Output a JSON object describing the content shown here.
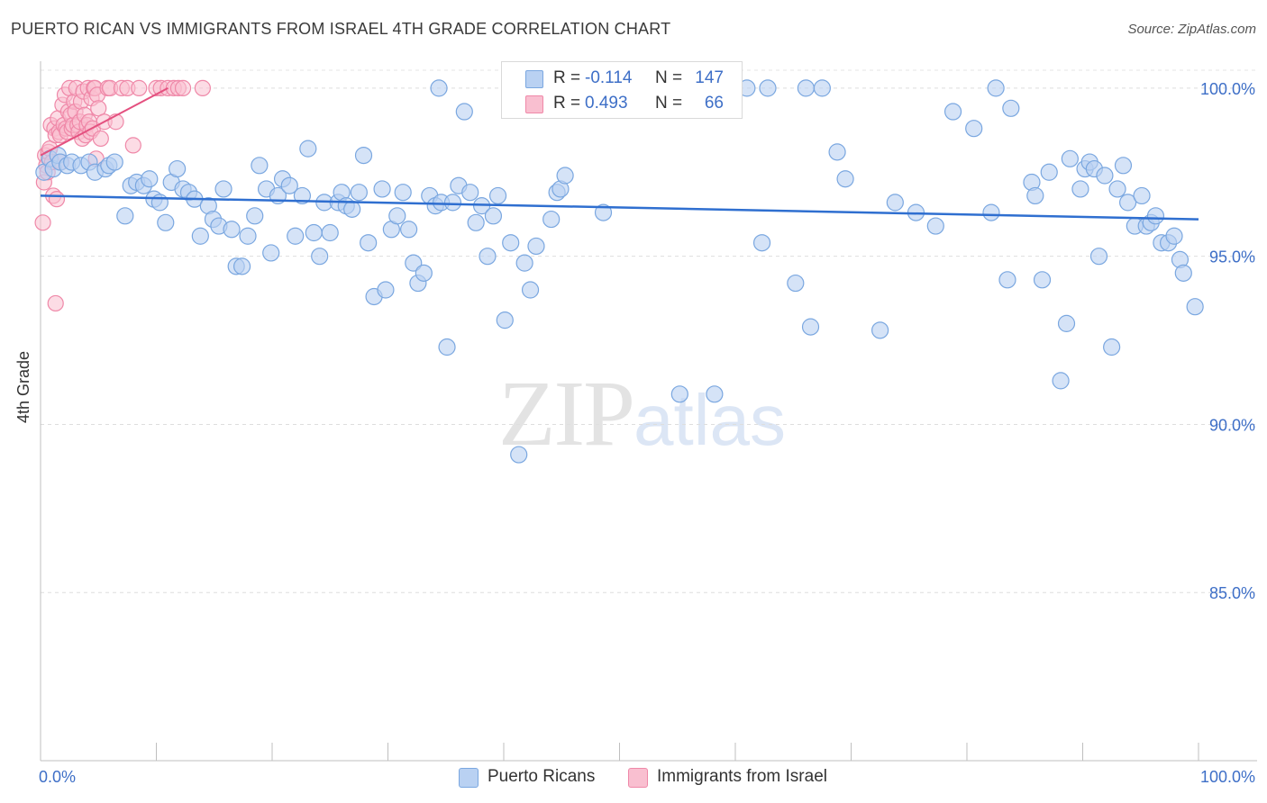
{
  "title": "PUERTO RICAN VS IMMIGRANTS FROM ISRAEL 4TH GRADE CORRELATION CHART",
  "source": "Source: ZipAtlas.com",
  "watermark": {
    "zip": "ZIP",
    "atlas": "atlas"
  },
  "legend": {
    "rows": [
      {
        "r_label": "R =",
        "r_value": "-0.114",
        "n_label": "N =",
        "n_value": "147",
        "color": "#b9d1f2"
      },
      {
        "r_label": "R =",
        "r_value": "0.493",
        "n_label": "N =",
        "n_value": "66",
        "color": "#f9bfd0"
      }
    ]
  },
  "bottom_legend": [
    {
      "label": "Puerto Ricans",
      "color": "#b9d1f2"
    },
    {
      "label": "Immigrants from Israel",
      "color": "#f9bfd0"
    }
  ],
  "chart_data": {
    "type": "scatter",
    "title": "PUERTO RICAN VS IMMIGRANTS FROM ISRAEL 4TH GRADE CORRELATION CHART",
    "xlabel": "",
    "ylabel": "4th Grade",
    "xlim": [
      0,
      100
    ],
    "ylim": [
      80,
      100.8
    ],
    "x_tick_labels": [
      "0.0%",
      "100.0%"
    ],
    "y_ticks": [
      85,
      90,
      95,
      100
    ],
    "y_tick_labels": [
      "85.0%",
      "90.0%",
      "95.0%",
      "100.0%"
    ],
    "grid": true,
    "legend_placement": "top-center",
    "colors": {
      "blue_fill": "#b9d1f2",
      "blue_stroke": "#7aa7e0",
      "blue_line": "#2f6fd0",
      "pink_fill": "#f9bfd0",
      "pink_stroke": "#ef88a8",
      "pink_line": "#e4507f"
    },
    "series": [
      {
        "name": "Puerto Ricans",
        "color": "#b9d1f2",
        "trend": {
          "x": [
            0,
            100
          ],
          "y": [
            96.8,
            96.1
          ]
        },
        "points": [
          [
            0.3,
            97.5
          ],
          [
            0.8,
            97.9
          ],
          [
            1.1,
            97.6
          ],
          [
            1.5,
            98.0
          ],
          [
            1.7,
            97.8
          ],
          [
            2.3,
            97.7
          ],
          [
            2.7,
            97.8
          ],
          [
            3.5,
            97.7
          ],
          [
            4.2,
            97.8
          ],
          [
            4.7,
            97.5
          ],
          [
            5.6,
            97.6
          ],
          [
            5.9,
            97.7
          ],
          [
            6.4,
            97.8
          ],
          [
            7.3,
            96.2
          ],
          [
            7.8,
            97.1
          ],
          [
            8.3,
            97.2
          ],
          [
            8.9,
            97.1
          ],
          [
            9.4,
            97.3
          ],
          [
            9.8,
            96.7
          ],
          [
            10.3,
            96.6
          ],
          [
            10.8,
            96.0
          ],
          [
            11.3,
            97.2
          ],
          [
            11.8,
            97.6
          ],
          [
            12.3,
            97.0
          ],
          [
            12.8,
            96.9
          ],
          [
            13.3,
            96.7
          ],
          [
            13.8,
            95.6
          ],
          [
            14.5,
            96.5
          ],
          [
            14.9,
            96.1
          ],
          [
            15.4,
            95.9
          ],
          [
            15.8,
            97.0
          ],
          [
            16.5,
            95.8
          ],
          [
            16.9,
            94.7
          ],
          [
            17.4,
            94.7
          ],
          [
            17.9,
            95.6
          ],
          [
            18.5,
            96.2
          ],
          [
            18.9,
            97.7
          ],
          [
            19.5,
            97.0
          ],
          [
            19.9,
            95.1
          ],
          [
            20.5,
            96.8
          ],
          [
            20.9,
            97.3
          ],
          [
            21.5,
            97.1
          ],
          [
            22.0,
            95.6
          ],
          [
            22.6,
            96.8
          ],
          [
            23.1,
            98.2
          ],
          [
            23.6,
            95.7
          ],
          [
            24.1,
            95.0
          ],
          [
            24.5,
            96.6
          ],
          [
            25.0,
            95.7
          ],
          [
            25.7,
            96.6
          ],
          [
            26.0,
            96.9
          ],
          [
            26.4,
            96.5
          ],
          [
            26.9,
            96.4
          ],
          [
            27.5,
            96.9
          ],
          [
            27.9,
            98.0
          ],
          [
            28.3,
            95.4
          ],
          [
            28.8,
            93.8
          ],
          [
            29.5,
            97.0
          ],
          [
            29.8,
            94.0
          ],
          [
            30.3,
            95.8
          ],
          [
            30.8,
            96.2
          ],
          [
            31.3,
            96.9
          ],
          [
            31.8,
            95.8
          ],
          [
            32.2,
            94.8
          ],
          [
            32.6,
            94.2
          ],
          [
            33.1,
            94.5
          ],
          [
            33.6,
            96.8
          ],
          [
            34.1,
            96.5
          ],
          [
            34.4,
            100.0
          ],
          [
            34.6,
            96.6
          ],
          [
            35.1,
            92.3
          ],
          [
            35.6,
            96.6
          ],
          [
            36.1,
            97.1
          ],
          [
            36.6,
            99.3
          ],
          [
            37.1,
            96.9
          ],
          [
            37.6,
            96.0
          ],
          [
            38.1,
            96.5
          ],
          [
            38.6,
            95.0
          ],
          [
            39.1,
            96.2
          ],
          [
            39.5,
            96.8
          ],
          [
            40.1,
            93.1
          ],
          [
            40.6,
            95.4
          ],
          [
            41.0,
            100.0
          ],
          [
            41.3,
            89.1
          ],
          [
            41.8,
            94.8
          ],
          [
            42.3,
            94.0
          ],
          [
            42.8,
            95.3
          ],
          [
            43.3,
            100.0
          ],
          [
            44.1,
            96.1
          ],
          [
            44.6,
            96.9
          ],
          [
            44.9,
            97.0
          ],
          [
            45.3,
            97.4
          ],
          [
            46.1,
            100.0
          ],
          [
            47.5,
            100.0
          ],
          [
            48.6,
            96.3
          ],
          [
            49.5,
            100.0
          ],
          [
            52.3,
            100.0
          ],
          [
            55.2,
            90.9
          ],
          [
            58.2,
            90.9
          ],
          [
            59.1,
            100.0
          ],
          [
            61.0,
            100.0
          ],
          [
            62.3,
            95.4
          ],
          [
            62.8,
            100.0
          ],
          [
            65.2,
            94.2
          ],
          [
            66.1,
            100.0
          ],
          [
            66.5,
            92.9
          ],
          [
            67.5,
            100.0
          ],
          [
            68.8,
            98.1
          ],
          [
            69.5,
            97.3
          ],
          [
            72.5,
            92.8
          ],
          [
            73.8,
            96.6
          ],
          [
            75.6,
            96.3
          ],
          [
            77.3,
            95.9
          ],
          [
            78.8,
            99.3
          ],
          [
            80.6,
            98.8
          ],
          [
            82.1,
            96.3
          ],
          [
            82.5,
            100.0
          ],
          [
            83.5,
            94.3
          ],
          [
            83.8,
            99.4
          ],
          [
            85.6,
            97.2
          ],
          [
            85.9,
            96.8
          ],
          [
            86.5,
            94.3
          ],
          [
            87.1,
            97.5
          ],
          [
            88.1,
            91.3
          ],
          [
            88.6,
            93.0
          ],
          [
            88.9,
            97.9
          ],
          [
            89.8,
            97.0
          ],
          [
            90.2,
            97.6
          ],
          [
            90.6,
            97.8
          ],
          [
            91.0,
            97.6
          ],
          [
            91.4,
            95.0
          ],
          [
            91.9,
            97.4
          ],
          [
            92.5,
            92.3
          ],
          [
            93.0,
            97.0
          ],
          [
            93.5,
            97.7
          ],
          [
            93.9,
            96.6
          ],
          [
            94.5,
            95.9
          ],
          [
            95.1,
            96.8
          ],
          [
            95.5,
            95.9
          ],
          [
            95.9,
            96.0
          ],
          [
            96.3,
            96.2
          ],
          [
            96.8,
            95.4
          ],
          [
            97.4,
            95.4
          ],
          [
            97.9,
            95.6
          ],
          [
            98.4,
            94.9
          ],
          [
            98.7,
            94.5
          ],
          [
            99.7,
            93.5
          ]
        ]
      },
      {
        "name": "Immigrants from Israel",
        "color": "#f9bfd0",
        "trend": {
          "x": [
            0,
            11
          ],
          "y": [
            98.0,
            100.0
          ]
        },
        "points": [
          [
            0.2,
            96.0
          ],
          [
            0.3,
            97.2
          ],
          [
            0.4,
            98.0
          ],
          [
            0.5,
            97.7
          ],
          [
            0.6,
            97.5
          ],
          [
            0.7,
            98.1
          ],
          [
            0.8,
            98.2
          ],
          [
            0.9,
            98.9
          ],
          [
            1.0,
            97.8
          ],
          [
            1.1,
            96.8
          ],
          [
            1.2,
            98.8
          ],
          [
            1.3,
            98.6
          ],
          [
            1.4,
            96.7
          ],
          [
            1.5,
            99.1
          ],
          [
            1.6,
            98.7
          ],
          [
            1.7,
            98.6
          ],
          [
            1.8,
            97.8
          ],
          [
            1.9,
            99.5
          ],
          [
            2.0,
            98.9
          ],
          [
            2.1,
            99.8
          ],
          [
            2.2,
            98.8
          ],
          [
            2.3,
            98.7
          ],
          [
            2.4,
            99.3
          ],
          [
            2.5,
            100.0
          ],
          [
            2.6,
            99.2
          ],
          [
            2.7,
            98.8
          ],
          [
            2.8,
            98.9
          ],
          [
            2.9,
            99.6
          ],
          [
            3.0,
            99.3
          ],
          [
            3.1,
            100.0
          ],
          [
            3.2,
            98.9
          ],
          [
            3.3,
            98.7
          ],
          [
            3.4,
            99.0
          ],
          [
            3.5,
            99.6
          ],
          [
            3.6,
            98.5
          ],
          [
            3.7,
            99.9
          ],
          [
            3.8,
            99.2
          ],
          [
            3.9,
            98.6
          ],
          [
            4.0,
            98.9
          ],
          [
            4.1,
            100.0
          ],
          [
            4.2,
            99.0
          ],
          [
            4.3,
            98.7
          ],
          [
            4.4,
            99.7
          ],
          [
            4.5,
            98.8
          ],
          [
            4.6,
            100.0
          ],
          [
            4.7,
            100.0
          ],
          [
            4.8,
            97.9
          ],
          [
            4.9,
            99.8
          ],
          [
            5.0,
            99.4
          ],
          [
            5.2,
            98.5
          ],
          [
            5.5,
            99.0
          ],
          [
            5.8,
            100.0
          ],
          [
            6.0,
            100.0
          ],
          [
            6.5,
            99.0
          ],
          [
            7.0,
            100.0
          ],
          [
            7.5,
            100.0
          ],
          [
            8.0,
            98.3
          ],
          [
            8.5,
            100.0
          ],
          [
            10.0,
            100.0
          ],
          [
            10.4,
            100.0
          ],
          [
            11.0,
            100.0
          ],
          [
            11.5,
            100.0
          ],
          [
            11.9,
            100.0
          ],
          [
            12.3,
            100.0
          ],
          [
            14.0,
            100.0
          ],
          [
            1.3,
            93.6
          ]
        ]
      }
    ]
  }
}
